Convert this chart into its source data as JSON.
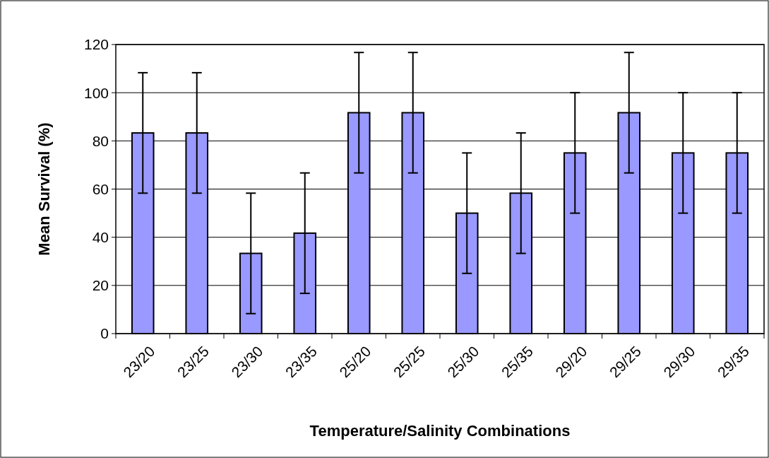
{
  "chart_data": {
    "type": "bar",
    "xlabel": "Temperature/Salinity Combinations",
    "ylabel": "Mean Survival (%)",
    "categories": [
      "23/20",
      "23/25",
      "23/30",
      "23/35",
      "25/20",
      "25/25",
      "25/30",
      "25/35",
      "29/20",
      "29/25",
      "29/30",
      "29/35"
    ],
    "values": [
      83.3,
      83.3,
      33.3,
      41.7,
      91.7,
      91.7,
      50,
      58.3,
      75,
      91.7,
      75,
      75
    ],
    "errors": [
      25,
      25,
      25,
      25,
      25,
      25,
      25,
      25,
      25,
      25,
      25,
      25
    ],
    "color": "#9999ff",
    "ylim": [
      0,
      120
    ],
    "yticks": [
      0,
      20,
      40,
      60,
      80,
      100,
      120
    ],
    "grid": "y"
  }
}
